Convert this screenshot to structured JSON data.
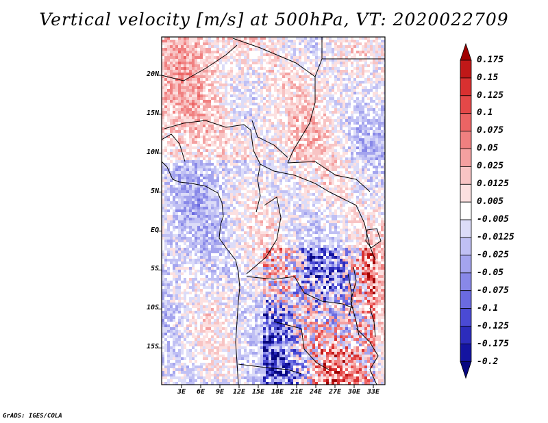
{
  "title": "Vertical velocity [m/s] at 500hPa, VT: 2020022709",
  "lat_labels": [
    "20N",
    "15N",
    "10N",
    "5N",
    "EQ",
    "5S",
    "10S",
    "15S"
  ],
  "lon_labels": [
    "3E",
    "6E",
    "9E",
    "12E",
    "15E",
    "18E",
    "21E",
    "24E",
    "27E",
    "30E",
    "33E"
  ],
  "colorbar": {
    "labels": [
      "0.175",
      "0.15",
      "0.125",
      "0.1",
      "0.075",
      "0.05",
      "0.025",
      "0.0125",
      "0.005",
      "-0.005",
      "-0.0125",
      "-0.025",
      "-0.05",
      "-0.075",
      "-0.1",
      "-0.125",
      "-0.175",
      "-0.2"
    ],
    "colors": [
      "#a00000",
      "#c01818",
      "#d83030",
      "#e44848",
      "#ec6464",
      "#f08080",
      "#f4a0a0",
      "#f8c4c4",
      "#fce0e0",
      "#ffffff",
      "#dcdcf8",
      "#c0c0f4",
      "#a4a4ee",
      "#8888e8",
      "#6a6ae0",
      "#4a4ad4",
      "#2c2cbc",
      "#1414a0",
      "#080880"
    ]
  },
  "credit": "GrADS: IGES/COLA"
}
